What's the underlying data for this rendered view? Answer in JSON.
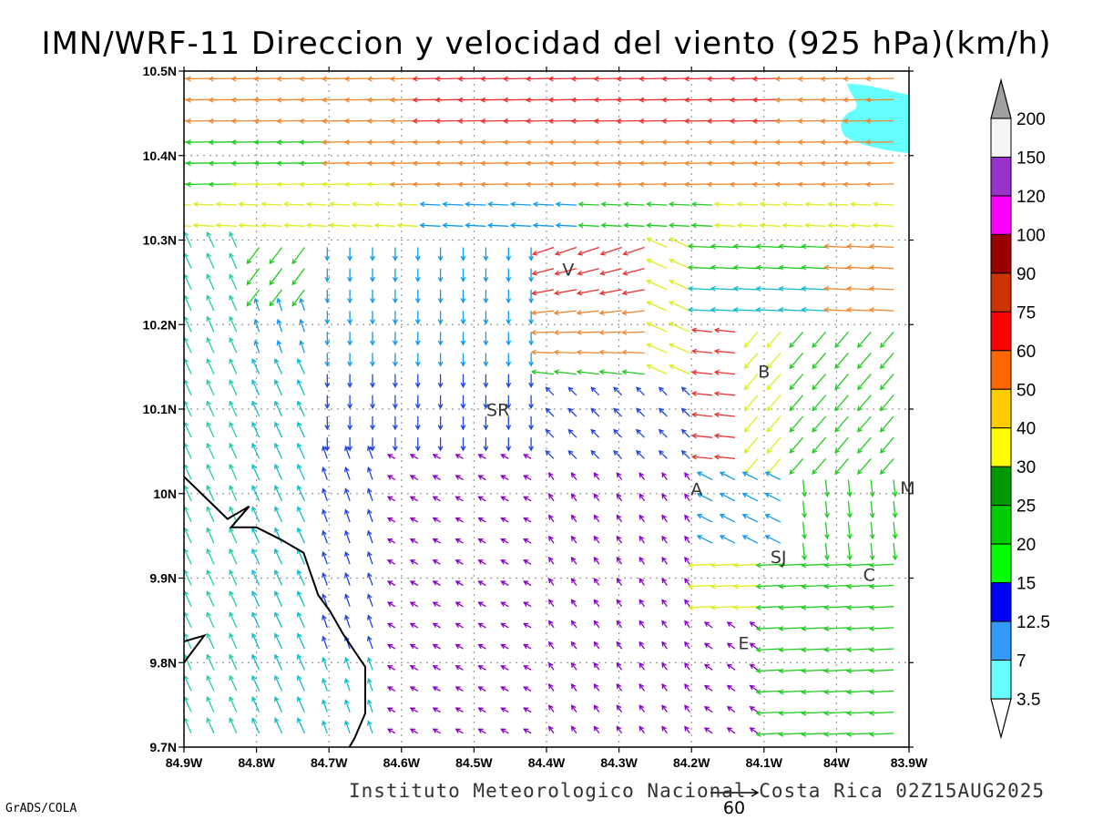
{
  "title": "IMN/WRF-11 Direccion y velocidad del viento (925 hPa)(km/h)",
  "footer": {
    "institution": "Instituto Meteorologico Nacional Costa Rica 02Z15AUG2025",
    "software": "GrADS/COLA"
  },
  "reference_vector": {
    "value": "60"
  },
  "map": {
    "lon_range": [
      -84.9,
      -83.9
    ],
    "lat_range": [
      9.7,
      10.5
    ],
    "lon_ticks": [
      {
        "v": -84.9,
        "label": "84.9W"
      },
      {
        "v": -84.8,
        "label": "84.8W"
      },
      {
        "v": -84.7,
        "label": "84.7W"
      },
      {
        "v": -84.6,
        "label": "84.6W"
      },
      {
        "v": -84.5,
        "label": "84.5W"
      },
      {
        "v": -84.4,
        "label": "84.4W"
      },
      {
        "v": -84.3,
        "label": "84.3W"
      },
      {
        "v": -84.2,
        "label": "84.2W"
      },
      {
        "v": -84.1,
        "label": "84.1W"
      },
      {
        "v": -84.0,
        "label": "84W"
      },
      {
        "v": -83.9,
        "label": "83.9W"
      }
    ],
    "lat_ticks": [
      {
        "v": 9.7,
        "label": "9.7N"
      },
      {
        "v": 9.8,
        "label": "9.8N"
      },
      {
        "v": 9.9,
        "label": "9.9N"
      },
      {
        "v": 10.0,
        "label": "10N"
      },
      {
        "v": 10.1,
        "label": "10.1N"
      },
      {
        "v": 10.2,
        "label": "10.2N"
      },
      {
        "v": 10.3,
        "label": "10.3N"
      },
      {
        "v": 10.4,
        "label": "10.4N"
      },
      {
        "v": 10.5,
        "label": "10.5N"
      }
    ],
    "grid": "dotted",
    "places": [
      {
        "label": "V",
        "lon": -84.37,
        "lat": 10.258
      },
      {
        "label": "B",
        "lon": -84.1,
        "lat": 10.137
      },
      {
        "label": "SR",
        "lon": -84.467,
        "lat": 10.092
      },
      {
        "label": "A",
        "lon": -84.193,
        "lat": 9.998
      },
      {
        "label": "SJ",
        "lon": -84.08,
        "lat": 9.918
      },
      {
        "label": "C",
        "lon": -83.955,
        "lat": 9.897
      },
      {
        "label": "E",
        "lon": -84.128,
        "lat": 9.816
      },
      {
        "label": "M",
        "lon": -83.902,
        "lat": 10.0
      }
    ],
    "coastline": [
      [
        -84.9,
        10.02
      ],
      [
        -84.87,
        9.995
      ],
      [
        -84.84,
        9.97
      ],
      [
        -84.81,
        9.985
      ],
      [
        -84.835,
        9.96
      ],
      [
        -84.8,
        9.96
      ],
      [
        -84.765,
        9.945
      ],
      [
        -84.735,
        9.93
      ],
      [
        -84.725,
        9.905
      ],
      [
        -84.715,
        9.88
      ],
      [
        -84.698,
        9.86
      ],
      [
        -84.68,
        9.833
      ],
      [
        -84.65,
        9.795
      ],
      [
        -84.65,
        9.74
      ],
      [
        -84.665,
        9.71
      ],
      [
        -84.672,
        9.7
      ]
    ],
    "coastline_west": [
      [
        -84.9,
        9.825
      ],
      [
        -84.872,
        9.832
      ],
      [
        -84.9,
        9.8
      ]
    ],
    "high_speed_area": {
      "color": "#66ffff",
      "region": "upper-right corner"
    }
  },
  "legend": {
    "colors": [
      "#66ffff",
      "#3399ff",
      "#0000ff",
      "#00ff00",
      "#00cc00",
      "#009900",
      "#ffff00",
      "#ffcc00",
      "#ff6600",
      "#ff0000",
      "#cc3300",
      "#990000",
      "#ff00ff",
      "#9933cc",
      "#f5f5f5"
    ],
    "labels": [
      "3.5",
      "7",
      "12.5",
      "15",
      "20",
      "25",
      "30",
      "40",
      "50",
      "60",
      "75",
      "90",
      "100",
      "120",
      "150",
      "200"
    ],
    "top_arrow_color": "#a0a0a0"
  },
  "vector_colors": {
    "violet": "#8800cc",
    "blue": "#2244dd",
    "lightblue": "#1199ee",
    "cyan": "#11bbcc",
    "teal": "#22ccaa",
    "green": "#22cc22",
    "yellow": "#ddee22",
    "orange": "#ee8833",
    "red": "#ee3333"
  }
}
